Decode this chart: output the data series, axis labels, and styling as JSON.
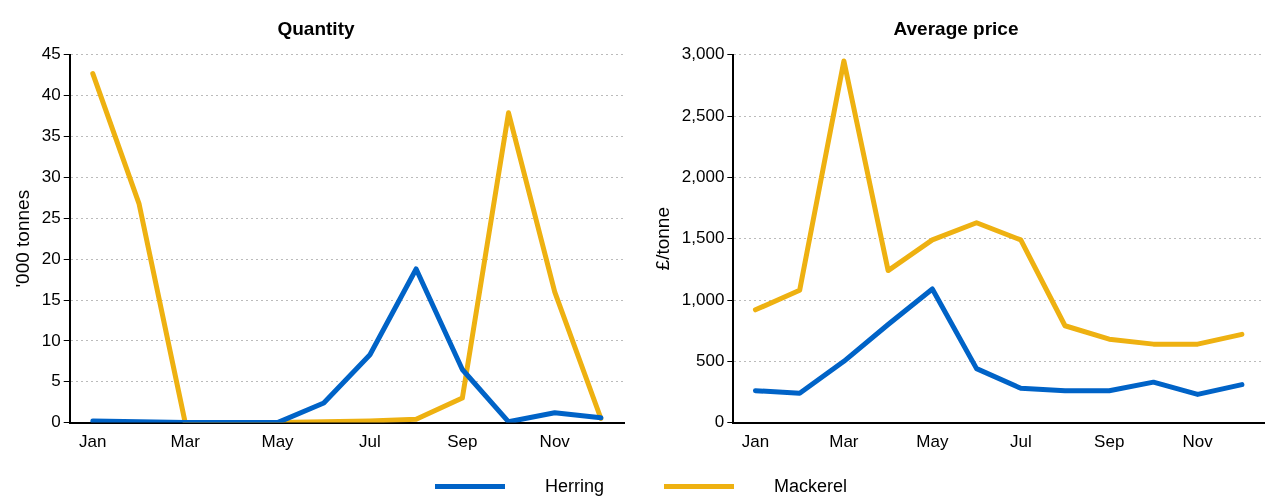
{
  "chart_data": [
    {
      "type": "line",
      "title": "Quantity",
      "ylabel": "'000 tonnes",
      "categories": [
        "Jan",
        null,
        "Mar",
        null,
        "May",
        null,
        "Jul",
        null,
        "Sep",
        null,
        "Nov",
        null
      ],
      "ylim": [
        0,
        45
      ],
      "yticks": [
        0,
        5,
        10,
        15,
        20,
        25,
        30,
        35,
        40,
        45
      ],
      "grid": "y",
      "legend": "bottom",
      "marker": "none",
      "series": [
        {
          "name": "Herring",
          "color": "#0063c7",
          "values": [
            0.2,
            0.1,
            0,
            0,
            0,
            2.4,
            8.3,
            18.8,
            6.5,
            0.1,
            1.2,
            0.6
          ]
        },
        {
          "name": "Mackerel",
          "color": "#eeb111",
          "values": [
            42.7,
            26.8,
            0,
            0,
            0,
            0.1,
            0.2,
            0.4,
            3,
            37.9,
            16,
            0.5
          ]
        }
      ]
    },
    {
      "type": "line",
      "title": "Average price",
      "ylabel": "£/tonne",
      "categories": [
        "Jan",
        null,
        "Mar",
        null,
        "May",
        null,
        "Jul",
        null,
        "Sep",
        null,
        "Nov",
        null
      ],
      "ylim": [
        0,
        3000
      ],
      "yticks": [
        0,
        {
          "value": 500,
          "label": "500"
        },
        {
          "value": 1000,
          "label": "1,000"
        },
        {
          "value": 1500,
          "label": "1,500"
        },
        {
          "value": 2000,
          "label": "2,000"
        },
        {
          "value": 2500,
          "label": "2,500"
        },
        {
          "value": 3000,
          "label": "3,000"
        }
      ],
      "grid": "y",
      "marker": "none",
      "series": [
        {
          "color": "#0063c7",
          "values": [
            260,
            240,
            500,
            800,
            1090,
            440,
            280,
            260,
            260,
            330,
            230,
            310
          ]
        },
        {
          "color": "#eeb111",
          "values": [
            920,
            1080,
            2950,
            1240,
            1490,
            1630,
            1490,
            790,
            680,
            640,
            640,
            720
          ]
        }
      ]
    }
  ]
}
